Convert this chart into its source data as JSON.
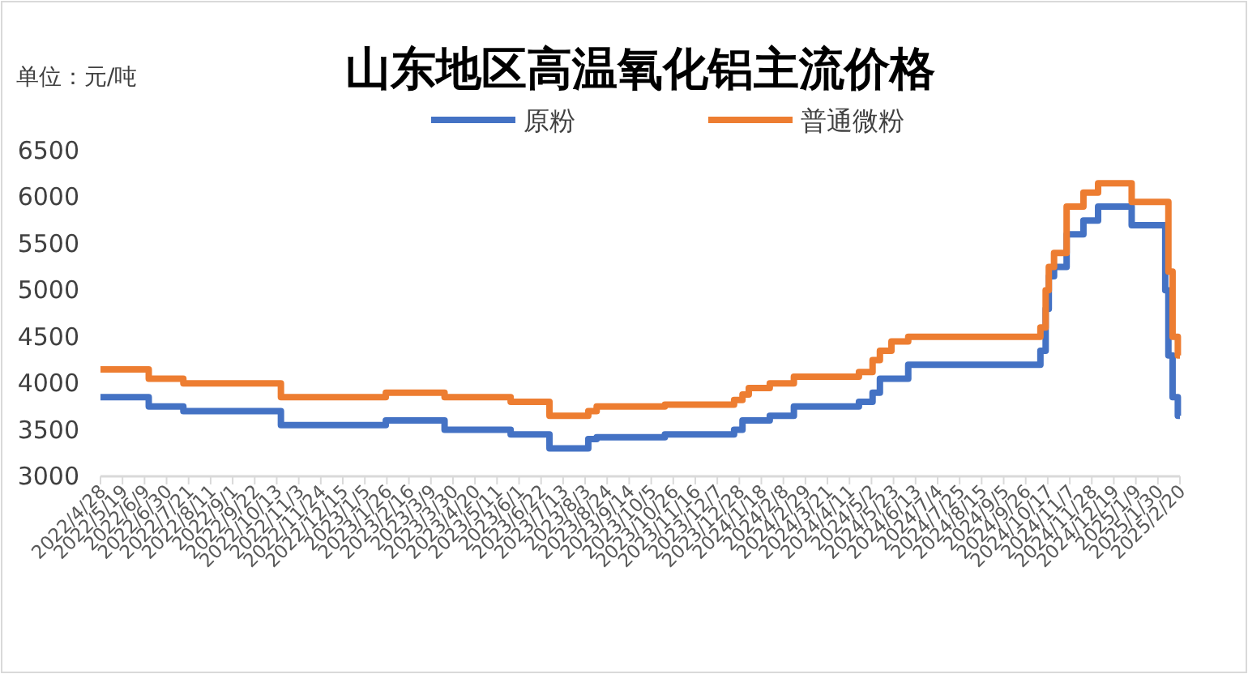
{
  "chart_data": {
    "type": "step",
    "title": "山东地区高温氧化铝主流价格",
    "ylabel": "单位：元/吨",
    "legend": "top",
    "ylim": [
      3000,
      6500
    ],
    "yticks": [
      3000,
      3500,
      4000,
      4500,
      5000,
      5500,
      6000,
      6500
    ],
    "xlim": [
      "2022-04-28",
      "2025-02-20"
    ],
    "xticks": [
      {
        "value": "2022-04-28",
        "label": "2022/4/28"
      },
      {
        "value": "2022-05-19",
        "label": "2022/5/19"
      },
      {
        "value": "2022-06-09",
        "label": "2022/6/9"
      },
      {
        "value": "2022-06-30",
        "label": "2022/6/30"
      },
      {
        "value": "2022-07-21",
        "label": "2022/7/21"
      },
      {
        "value": "2022-08-11",
        "label": "2022/8/11"
      },
      {
        "value": "2022-09-01",
        "label": "2022/9/1"
      },
      {
        "value": "2022-09-22",
        "label": "2022/9/22"
      },
      {
        "value": "2022-10-13",
        "label": "2022/10/13"
      },
      {
        "value": "2022-11-03",
        "label": "2022/11/3"
      },
      {
        "value": "2022-11-24",
        "label": "2022/11/24"
      },
      {
        "value": "2022-12-15",
        "label": "2022/12/15"
      },
      {
        "value": "2023-01-05",
        "label": "2023/1/5"
      },
      {
        "value": "2023-01-26",
        "label": "2023/1/26"
      },
      {
        "value": "2023-02-16",
        "label": "2023/2/16"
      },
      {
        "value": "2023-03-09",
        "label": "2023/3/9"
      },
      {
        "value": "2023-03-30",
        "label": "2023/3/30"
      },
      {
        "value": "2023-04-20",
        "label": "2023/4/20"
      },
      {
        "value": "2023-05-11",
        "label": "2023/5/11"
      },
      {
        "value": "2023-06-01",
        "label": "2023/6/1"
      },
      {
        "value": "2023-06-22",
        "label": "2023/6/22"
      },
      {
        "value": "2023-07-13",
        "label": "2023/7/13"
      },
      {
        "value": "2023-08-03",
        "label": "2023/8/3"
      },
      {
        "value": "2023-08-24",
        "label": "2023/8/24"
      },
      {
        "value": "2023-09-14",
        "label": "2023/9/14"
      },
      {
        "value": "2023-10-05",
        "label": "2023/10/5"
      },
      {
        "value": "2023-10-26",
        "label": "2023/10/26"
      },
      {
        "value": "2023-11-16",
        "label": "2023/11/16"
      },
      {
        "value": "2023-12-07",
        "label": "2023/12/7"
      },
      {
        "value": "2023-12-28",
        "label": "2023/12/28"
      },
      {
        "value": "2024-01-18",
        "label": "2024/1/18"
      },
      {
        "value": "2024-02-08",
        "label": "2024/2/8"
      },
      {
        "value": "2024-02-29",
        "label": "2024/2/29"
      },
      {
        "value": "2024-03-21",
        "label": "2024/3/21"
      },
      {
        "value": "2024-04-11",
        "label": "2024/4/11"
      },
      {
        "value": "2024-05-02",
        "label": "2024/5/2"
      },
      {
        "value": "2024-05-23",
        "label": "2024/5/23"
      },
      {
        "value": "2024-06-13",
        "label": "2024/6/13"
      },
      {
        "value": "2024-07-04",
        "label": "2024/7/4"
      },
      {
        "value": "2024-07-25",
        "label": "2024/7/25"
      },
      {
        "value": "2024-08-15",
        "label": "2024/8/15"
      },
      {
        "value": "2024-09-05",
        "label": "2024/9/5"
      },
      {
        "value": "2024-09-26",
        "label": "2024/9/26"
      },
      {
        "value": "2024-10-17",
        "label": "2024/10/17"
      },
      {
        "value": "2024-11-07",
        "label": "2024/11/7"
      },
      {
        "value": "2024-11-28",
        "label": "2024/11/28"
      },
      {
        "value": "2024-12-19",
        "label": "2024/12/19"
      },
      {
        "value": "2025-01-09",
        "label": "2025/1/9"
      },
      {
        "value": "2025-01-30",
        "label": "2025/1/30"
      },
      {
        "value": "2025-02-20",
        "label": "2025/2/20"
      }
    ],
    "series": [
      {
        "name": "原粉",
        "color": "#4472c4",
        "x": [
          "2022-04-28",
          "2022-06-13",
          "2022-07-16",
          "2022-10-17",
          "2023-01-25",
          "2023-03-22",
          "2023-05-24",
          "2023-06-30",
          "2023-08-06",
          "2023-08-14",
          "2023-10-18",
          "2023-12-23",
          "2023-12-31",
          "2024-01-26",
          "2024-02-18",
          "2024-04-20",
          "2024-05-03",
          "2024-05-10",
          "2024-06-06",
          "2024-10-10",
          "2024-10-15",
          "2024-10-18",
          "2024-10-23",
          "2024-11-04",
          "2024-11-20",
          "2024-12-04",
          "2025-01-05",
          "2025-02-06",
          "2025-02-09",
          "2025-02-13",
          "2025-02-18",
          "2025-02-20"
        ],
        "values": [
          3850,
          3750,
          3700,
          3550,
          3600,
          3500,
          3450,
          3300,
          3400,
          3420,
          3450,
          3500,
          3600,
          3650,
          3750,
          3800,
          3900,
          4050,
          4200,
          4350,
          4800,
          5150,
          5250,
          5600,
          5750,
          5900,
          5700,
          5000,
          4300,
          3850,
          3650,
          3650
        ]
      },
      {
        "name": "普通微粉",
        "color": "#ed7d31",
        "x": [
          "2022-04-28",
          "2022-06-13",
          "2022-07-16",
          "2022-10-17",
          "2023-01-25",
          "2023-03-22",
          "2023-05-24",
          "2023-06-30",
          "2023-08-06",
          "2023-08-14",
          "2023-10-18",
          "2023-12-23",
          "2023-12-31",
          "2024-01-06",
          "2024-01-26",
          "2024-02-18",
          "2024-04-20",
          "2024-05-03",
          "2024-05-10",
          "2024-05-21",
          "2024-06-06",
          "2024-10-10",
          "2024-10-15",
          "2024-10-18",
          "2024-10-23",
          "2024-11-04",
          "2024-11-20",
          "2024-12-04",
          "2025-01-05",
          "2025-02-09",
          "2025-02-13",
          "2025-02-18",
          "2025-02-20"
        ],
        "values": [
          4150,
          4050,
          4000,
          3850,
          3900,
          3850,
          3800,
          3650,
          3700,
          3750,
          3770,
          3820,
          3880,
          3950,
          4000,
          4070,
          4120,
          4250,
          4350,
          4450,
          4500,
          4600,
          5000,
          5250,
          5400,
          5900,
          6050,
          6150,
          5950,
          5200,
          4500,
          4300,
          4300
        ]
      }
    ]
  }
}
